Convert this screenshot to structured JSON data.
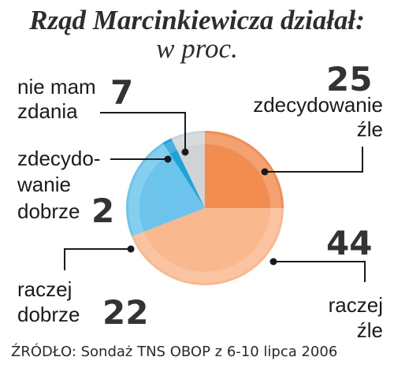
{
  "chart_data": {
    "type": "pie",
    "title": "Rząd Marcinkiewicza działał:",
    "subtitle": "w proc.",
    "slices": [
      {
        "label_lines": [
          "zdecydowanie",
          "źle"
        ],
        "value": 25,
        "color": "#f28d52"
      },
      {
        "label_lines": [
          "raczej",
          "źle"
        ],
        "value": 44,
        "color": "#f9b88e"
      },
      {
        "label_lines": [
          "raczej",
          "dobrze"
        ],
        "value": 22,
        "color": "#6cc4ec"
      },
      {
        "label_lines": [
          "zdecydo-",
          "wanie",
          "dobrze"
        ],
        "value": 2,
        "color": "#1ca3dc"
      },
      {
        "label_lines": [
          "nie mam",
          "zdania"
        ],
        "value": 7,
        "color": "#cfd3d6"
      }
    ]
  },
  "labels": {
    "zdecydowanie_zle": {
      "line1": "zdecydowanie",
      "line2": "źle",
      "value": "25"
    },
    "raczej_zle": {
      "line1": "raczej",
      "line2": "źle",
      "value": "44"
    },
    "raczej_dobrze": {
      "line1": "raczej",
      "line2": "dobrze",
      "value": "22"
    },
    "zdecydowanie_dobrze": {
      "line1": "zdecydo-",
      "line2": "wanie",
      "line3": "dobrze",
      "value": "2"
    },
    "nie_mam_zdania": {
      "line1": "nie mam",
      "line2": "zdania",
      "value": "7"
    }
  },
  "source": "ŹRÓDŁO: Sondaż TNS OBOP z 6-10 lipca 2006"
}
